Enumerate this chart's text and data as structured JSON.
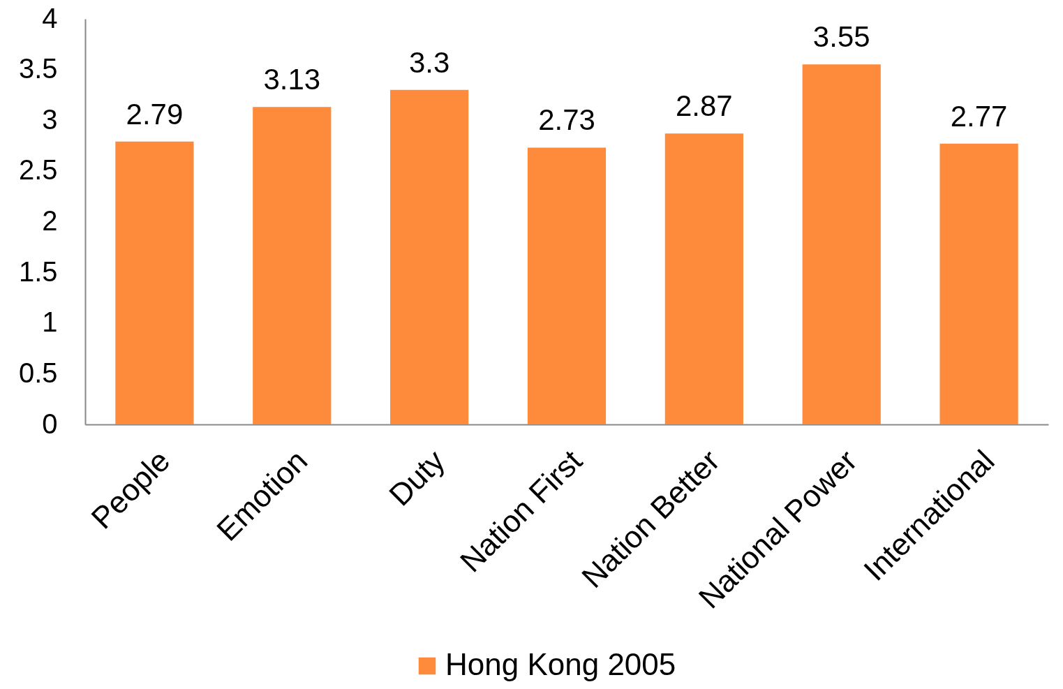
{
  "chart_data": {
    "type": "bar",
    "categories": [
      "People",
      "Emotion",
      "Duty",
      "Nation First",
      "Nation Better",
      "National Power",
      "International"
    ],
    "series": [
      {
        "name": "Hong Kong 2005",
        "color": "#fe8b3b",
        "values": [
          2.79,
          3.13,
          3.3,
          2.73,
          2.87,
          3.55,
          2.77
        ]
      }
    ],
    "ylim": [
      0,
      4
    ],
    "yticks": [
      0,
      0.5,
      1,
      1.5,
      2,
      2.5,
      3,
      3.5,
      4
    ],
    "grid": false,
    "data_labels": true,
    "legend": "bottom"
  }
}
